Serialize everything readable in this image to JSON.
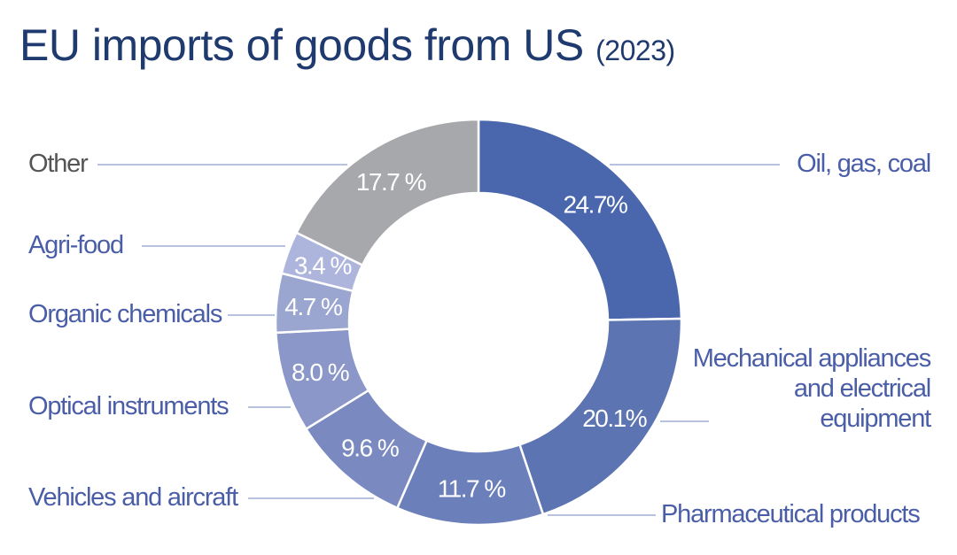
{
  "chart_data": {
    "type": "pie",
    "donut": true,
    "title": "EU imports of goods from US",
    "subtitle": "(2023)",
    "slices": [
      {
        "label": "Oil, gas, coal",
        "value": 24.7,
        "text": "24.7%",
        "color": "#4a67ad"
      },
      {
        "label": "Mechanical appliances and electrical equipment",
        "value": 20.1,
        "text": "20.1%",
        "color": "#5d74b3"
      },
      {
        "label": "Pharmaceutical products",
        "value": 11.7,
        "text": "11.7 %",
        "color": "#6b7fba"
      },
      {
        "label": "Vehicles and aircraft",
        "value": 9.6,
        "text": "9.6 %",
        "color": "#7a8ac0"
      },
      {
        "label": "Optical instruments",
        "value": 8.0,
        "text": "8.0 %",
        "color": "#8a97c8"
      },
      {
        "label": "Organic chemicals",
        "value": 4.7,
        "text": "4.7 %",
        "color": "#9aa5d0"
      },
      {
        "label": "Agri-food",
        "value": 3.4,
        "text": "3.4 %",
        "color": "#adb5dc"
      },
      {
        "label": "Other",
        "value": 17.7,
        "text": "17.7 %",
        "color": "#a6a8ab"
      }
    ],
    "legend": "leader-line labels"
  }
}
